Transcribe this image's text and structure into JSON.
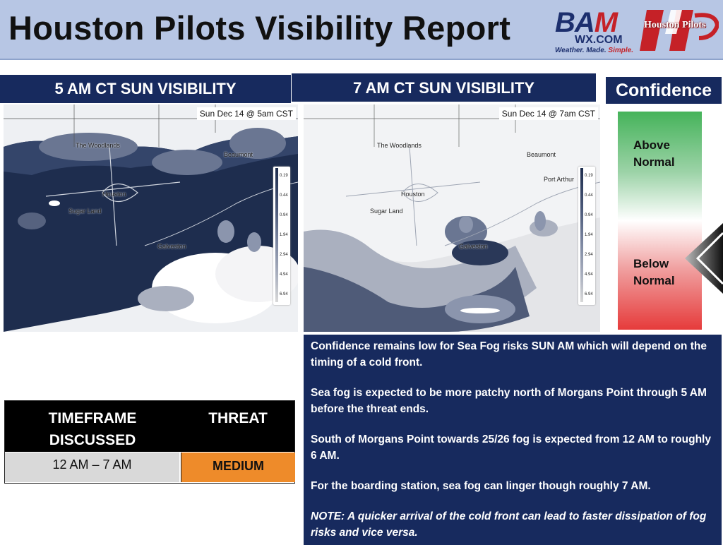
{
  "header": {
    "title": "Houston Pilots Visibility Report",
    "bam_logo": {
      "main": "BAM",
      "sub": "WX.COM",
      "tagline_a": "Weather. Made. ",
      "tagline_b": "Simple."
    },
    "pilots_logo": "Houston Pilots"
  },
  "panels": {
    "left_title": "5 AM CT SUN VISIBILITY",
    "right_title": "7 AM CT SUN VISIBILITY",
    "confidence_title": "Confidence"
  },
  "maps": {
    "left": {
      "stamp": "Sun Dec 14 @ 5am CST"
    },
    "right": {
      "stamp": "Sun Dec 14 @ 7am CST"
    },
    "places": [
      "The Woodlands",
      "Beaumont",
      "Houston",
      "Sugar Land",
      "Galveston",
      "Port Arthur"
    ],
    "scale_ticks": [
      "0.19",
      "0.44",
      "0.94",
      "1.94",
      "2.94",
      "4.94",
      "6.94"
    ]
  },
  "confidence": {
    "above": [
      "Above",
      "Normal"
    ],
    "below": [
      "Below",
      "Normal"
    ]
  },
  "threat_table": {
    "col1_header": [
      "TIMEFRAME",
      "DISCUSSED"
    ],
    "col2_header": "THREAT",
    "timeframe": "12 AM – 7 AM",
    "threat": "MEDIUM"
  },
  "discussion": [
    "Confidence remains low for Sea Fog risks SUN AM which will depend on the timing of a cold front.",
    "Sea fog is expected to be more patchy north of Morgans Point through 5 AM before the threat ends.",
    "South of Morgans Point towards 25/26 fog is expected from 12 AM to roughly 6 AM.",
    "For the boarding station, sea fog can linger though roughly 7 AM.",
    "NOTE:  A quicker arrival of the cold front can lead to faster dissipation of fog risks and vice versa."
  ],
  "colors": {
    "navy": "#172a5e",
    "header_bg": "#b7c6e4",
    "threat_medium": "#ee8b2a",
    "confidence_high": "#45b35a",
    "confidence_low": "#e63b3b"
  }
}
